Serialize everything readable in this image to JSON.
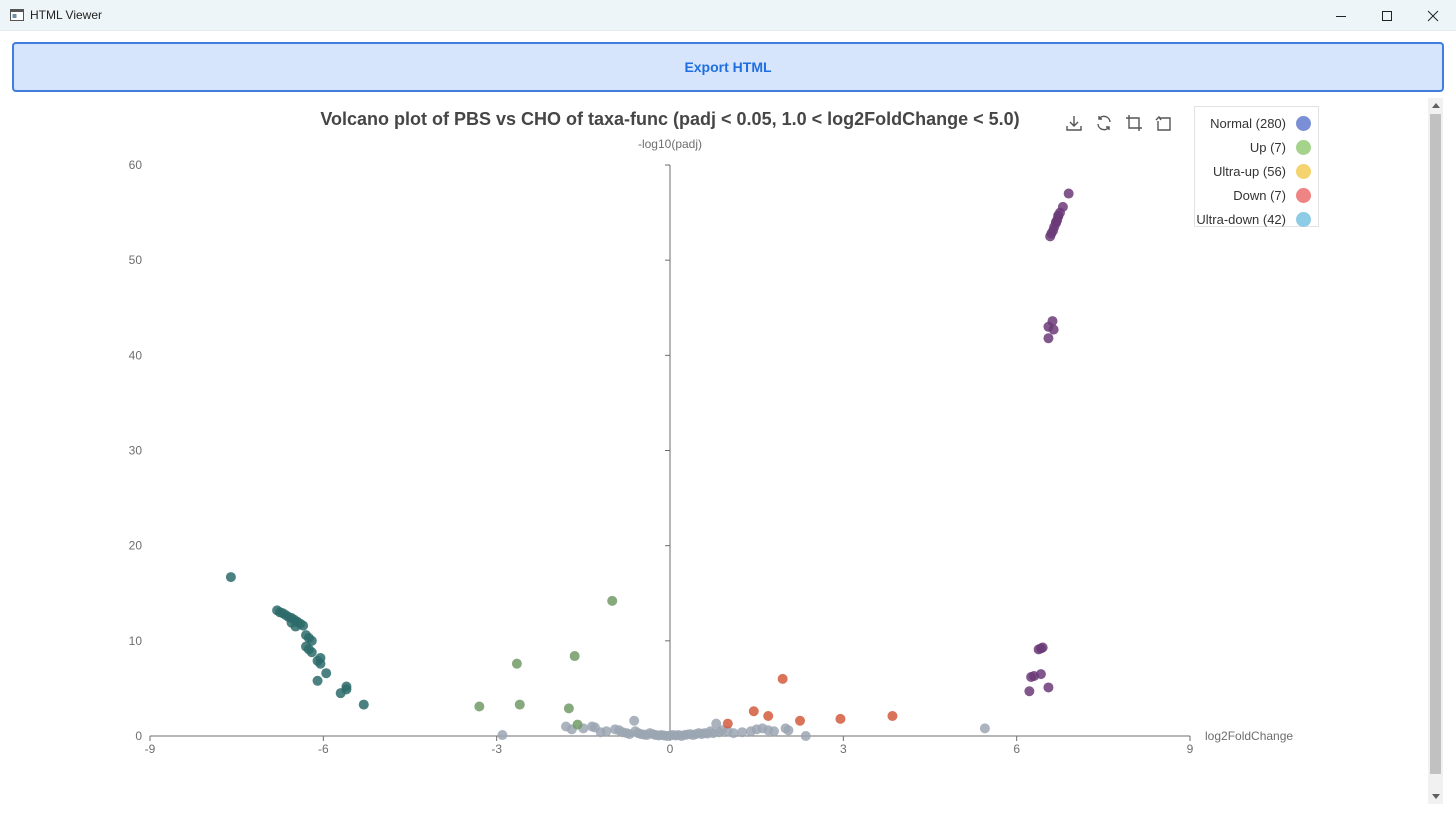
{
  "window": {
    "title": "HTML Viewer"
  },
  "export_button": {
    "label": "Export HTML"
  },
  "toolbox": [
    "download-icon",
    "refresh-icon",
    "crop-icon",
    "restore-icon"
  ],
  "chart_data": {
    "type": "scatter",
    "title": "Volcano plot of PBS vs CHO of taxa-func (padj < 0.05,  1.0 < log2FoldChange < 5.0)",
    "xlabel": "log2FoldChange",
    "ylabel": "-log10(padj)",
    "xlim": [
      -9,
      9
    ],
    "ylim": [
      0,
      60
    ],
    "xticks": [
      -9,
      -6,
      -3,
      0,
      3,
      6,
      9
    ],
    "yticks": [
      0,
      10,
      20,
      30,
      40,
      50,
      60
    ],
    "grid": false,
    "legend": "top-right",
    "legend_entries": [
      {
        "name": "Normal (280)",
        "color": "#7a8fd6"
      },
      {
        "name": "Up (7)",
        "color": "#a5d38c"
      },
      {
        "name": "Ultra-up (56)",
        "color": "#f5d36e"
      },
      {
        "name": "Down (7)",
        "color": "#ee8483"
      },
      {
        "name": "Ultra-down (42)",
        "color": "#8ecbe4"
      }
    ],
    "series": [
      {
        "name": "Normal (280)",
        "color": "#9ba6b3",
        "points": [
          [
            -2.9,
            0.1
          ],
          [
            -1.8,
            1.0
          ],
          [
            -1.7,
            0.7
          ],
          [
            -1.5,
            0.8
          ],
          [
            -1.35,
            1.0
          ],
          [
            -1.3,
            0.9
          ],
          [
            -1.2,
            0.4
          ],
          [
            -1.1,
            0.5
          ],
          [
            -0.95,
            0.7
          ],
          [
            -0.88,
            0.6
          ],
          [
            -0.82,
            0.4
          ],
          [
            -0.75,
            0.3
          ],
          [
            -0.7,
            0.2
          ],
          [
            -0.62,
            1.6
          ],
          [
            -0.6,
            0.5
          ],
          [
            -0.55,
            0.3
          ],
          [
            -0.5,
            0.2
          ],
          [
            -0.45,
            0.15
          ],
          [
            -0.4,
            0.1
          ],
          [
            -0.35,
            0.3
          ],
          [
            -0.3,
            0.2
          ],
          [
            -0.25,
            0.1
          ],
          [
            -0.2,
            0.05
          ],
          [
            -0.15,
            0.1
          ],
          [
            -0.1,
            0.05
          ],
          [
            -0.05,
            0.0
          ],
          [
            0.0,
            0.05
          ],
          [
            0.05,
            0.1
          ],
          [
            0.1,
            0.05
          ],
          [
            0.15,
            0.1
          ],
          [
            0.2,
            0.0
          ],
          [
            0.25,
            0.1
          ],
          [
            0.3,
            0.15
          ],
          [
            0.35,
            0.2
          ],
          [
            0.4,
            0.1
          ],
          [
            0.45,
            0.2
          ],
          [
            0.5,
            0.3
          ],
          [
            0.55,
            0.2
          ],
          [
            0.6,
            0.3
          ],
          [
            0.65,
            0.25
          ],
          [
            0.7,
            0.5
          ],
          [
            0.75,
            0.3
          ],
          [
            0.8,
            1.3
          ],
          [
            0.85,
            0.4
          ],
          [
            0.9,
            0.6
          ],
          [
            1.0,
            0.5
          ],
          [
            1.1,
            0.3
          ],
          [
            1.25,
            0.4
          ],
          [
            1.4,
            0.5
          ],
          [
            1.5,
            0.7
          ],
          [
            1.6,
            0.8
          ],
          [
            1.7,
            0.6
          ],
          [
            1.8,
            0.5
          ],
          [
            2.0,
            0.8
          ],
          [
            2.05,
            0.6
          ],
          [
            2.35,
            0.0
          ],
          [
            5.45,
            0.8
          ]
        ]
      },
      {
        "name": "Up (7)",
        "color": "#729a67",
        "points": [
          [
            -3.3,
            3.1
          ],
          [
            -2.65,
            7.6
          ],
          [
            -2.6,
            3.3
          ],
          [
            -1.75,
            2.9
          ],
          [
            -1.65,
            8.4
          ],
          [
            -1.6,
            1.2
          ],
          [
            -1.0,
            14.2
          ]
        ]
      },
      {
        "name": "Ultra-up (56)",
        "color": "#6b3a78",
        "points": [
          [
            6.9,
            57.0
          ],
          [
            6.8,
            55.6
          ],
          [
            6.75,
            55.0
          ],
          [
            6.72,
            54.6
          ],
          [
            6.7,
            54.2
          ],
          [
            6.68,
            53.9
          ],
          [
            6.65,
            53.5
          ],
          [
            6.63,
            53.1
          ],
          [
            6.6,
            52.8
          ],
          [
            6.58,
            52.5
          ],
          [
            6.72,
            54.7
          ],
          [
            6.68,
            54.0
          ],
          [
            6.62,
            43.6
          ],
          [
            6.55,
            43.0
          ],
          [
            6.64,
            42.7
          ],
          [
            6.55,
            41.8
          ],
          [
            6.45,
            9.3
          ],
          [
            6.42,
            9.2
          ],
          [
            6.38,
            9.1
          ],
          [
            6.3,
            6.3
          ],
          [
            6.25,
            6.2
          ],
          [
            6.42,
            6.5
          ],
          [
            6.55,
            5.1
          ],
          [
            6.22,
            4.7
          ]
        ]
      },
      {
        "name": "Down (7)",
        "color": "#d25a3c",
        "points": [
          [
            1.0,
            1.3
          ],
          [
            1.45,
            2.6
          ],
          [
            1.7,
            2.1
          ],
          [
            1.95,
            6.0
          ],
          [
            2.25,
            1.6
          ],
          [
            2.95,
            1.8
          ],
          [
            3.85,
            2.1
          ]
        ]
      },
      {
        "name": "Ultra-down (42)",
        "color": "#2d6b6b",
        "points": [
          [
            -7.6,
            16.7
          ],
          [
            -6.8,
            13.2
          ],
          [
            -6.75,
            13.0
          ],
          [
            -6.7,
            12.9
          ],
          [
            -6.65,
            12.7
          ],
          [
            -6.6,
            12.5
          ],
          [
            -6.55,
            12.4
          ],
          [
            -6.5,
            12.2
          ],
          [
            -6.45,
            12.0
          ],
          [
            -6.4,
            11.8
          ],
          [
            -6.35,
            11.6
          ],
          [
            -6.55,
            11.9
          ],
          [
            -6.48,
            11.5
          ],
          [
            -6.3,
            10.6
          ],
          [
            -6.25,
            10.3
          ],
          [
            -6.2,
            10.0
          ],
          [
            -6.3,
            9.4
          ],
          [
            -6.25,
            9.1
          ],
          [
            -6.2,
            8.8
          ],
          [
            -6.05,
            8.2
          ],
          [
            -6.1,
            7.9
          ],
          [
            -6.05,
            7.6
          ],
          [
            -5.95,
            6.6
          ],
          [
            -6.1,
            5.8
          ],
          [
            -5.6,
            5.2
          ],
          [
            -5.6,
            4.9
          ],
          [
            -5.7,
            4.5
          ],
          [
            -5.3,
            3.3
          ]
        ]
      }
    ]
  }
}
